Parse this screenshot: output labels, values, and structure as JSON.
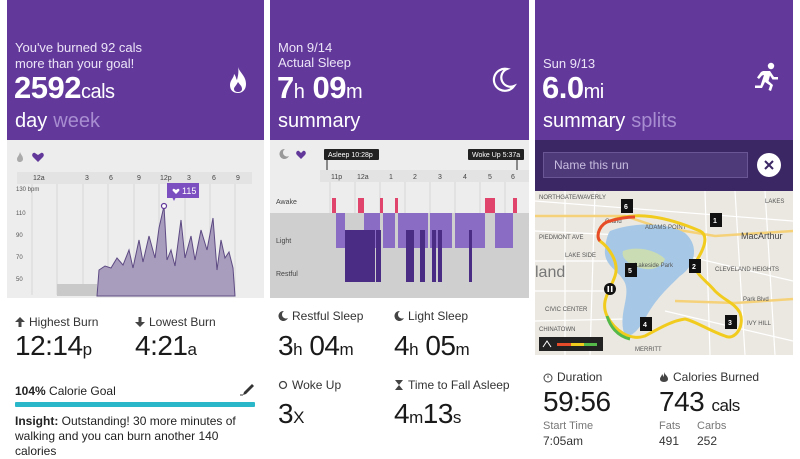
{
  "calories": {
    "subtitle_line1": "You've burned 92 cals",
    "subtitle_line2": "more than your goal!",
    "value": "2592",
    "unit": "cals",
    "tab_active": "day",
    "tab_inactive": "week",
    "icon": "flame-icon",
    "chart": {
      "x_ticks": [
        "12a",
        "3",
        "6",
        "9",
        "12p",
        "3",
        "6",
        "9"
      ],
      "y_ticks": [
        "130 bpm",
        "110",
        "90",
        "70",
        "50"
      ],
      "marker_label": "115"
    },
    "highest_label": "Highest Burn",
    "highest_value": "12:14",
    "highest_suffix": "p",
    "lowest_label": "Lowest Burn",
    "lowest_value": "4:21",
    "lowest_suffix": "a",
    "goal_percent": "104%",
    "goal_text": "Calorie Goal",
    "insight_title": "Insight:",
    "insight_text": "Outstanding! 30 more minutes of walking and you can burn another 140 calories"
  },
  "sleep": {
    "date": "Mon 9/14",
    "subtitle": "Actual Sleep",
    "hours": "7",
    "hours_unit": "h",
    "minutes": "09",
    "minutes_unit": "m",
    "tab_active": "summary",
    "icon": "moon-icon",
    "asleep_badge": "Asleep 10:28p",
    "woke_badge": "Woke Up 5:37a",
    "x_ticks": [
      "11p",
      "12a",
      "1",
      "2",
      "3",
      "4",
      "5",
      "6"
    ],
    "rows": [
      "Awake",
      "Light",
      "Restful"
    ],
    "restful_label": "Restful Sleep",
    "restful_h": "3",
    "restful_m": "04",
    "light_label": "Light Sleep",
    "light_h": "4",
    "light_m": "05",
    "wokeup_label": "Woke Up",
    "wokeup_value": "3",
    "wokeup_unit": "X",
    "fall_label": "Time to Fall Asleep",
    "fall_m": "4",
    "fall_s": "13",
    "h_unit": "h",
    "m_unit": "m",
    "s_unit": "s"
  },
  "run": {
    "date": "Sun 9/13",
    "distance": "6.0",
    "unit": "mi",
    "tab_active": "summary",
    "tab_inactive": "splits",
    "icon": "runner-icon",
    "name_placeholder": "Name this run",
    "map_labels": [
      "NORTHGATE/WAVERLY",
      "ADAMS POINT",
      "MacArthur",
      "CLEVELAND HEIGHTS",
      "Park Blvd",
      "IVY HILL",
      "CHINATOWN",
      "MERRITT",
      "PIEDMONT AVE",
      "LAKE SIDE",
      "Lakeside Park",
      "Grand",
      "LAKES",
      "CIVIC CENTER",
      "land"
    ],
    "split_markers": [
      "1",
      "2",
      "3",
      "4",
      "5",
      "6"
    ],
    "duration_label": "Duration",
    "duration_value": "59:56",
    "start_label": "Start Time",
    "start_value": "7:05am",
    "calories_label": "Calories Burned",
    "calories_value": "743",
    "calories_unit": "cals",
    "fats_label": "Fats",
    "fats_value": "491",
    "carbs_label": "Carbs",
    "carbs_value": "252"
  }
}
